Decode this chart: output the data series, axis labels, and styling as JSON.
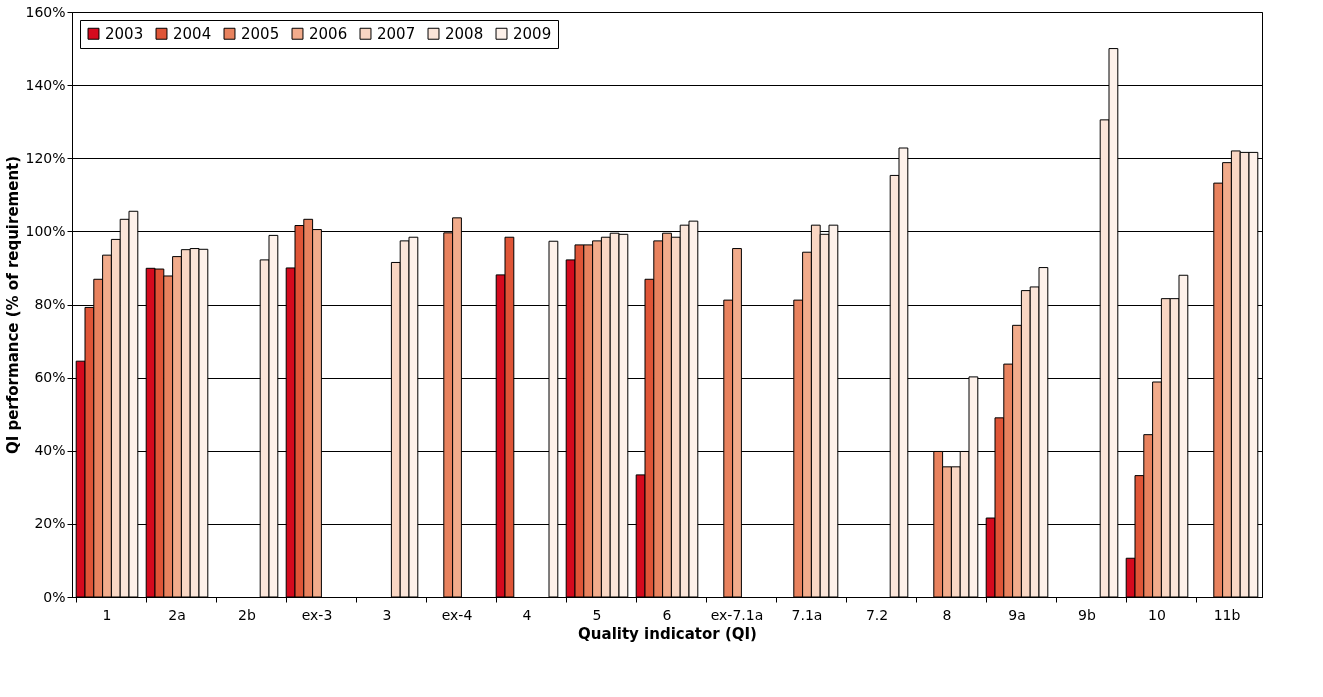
{
  "chart_data": {
    "type": "bar",
    "xlabel": "Quality indicator (QI)",
    "ylabel": "QI performance (% of requirement)",
    "categories": [
      "1",
      "2a",
      "2b",
      "ex-3",
      "3",
      "ex-4",
      "4",
      "5",
      "6",
      "ex-7.1a",
      "7.1a",
      "7.2",
      "8",
      "9a",
      "9b",
      "10",
      "11b"
    ],
    "series": [
      {
        "name": "2003",
        "color": "#d40a1e",
        "values": [
          64.5,
          89.9,
          null,
          90,
          null,
          null,
          88.1,
          92.2,
          33.4,
          null,
          null,
          null,
          null,
          21.6,
          null,
          10.6,
          null
        ]
      },
      {
        "name": "2004",
        "color": "#df5537",
        "values": [
          79.2,
          89.7,
          null,
          101.6,
          null,
          null,
          98.4,
          96.3,
          86.9,
          null,
          null,
          null,
          null,
          49.0,
          null,
          33.2,
          null
        ]
      },
      {
        "name": "2005",
        "color": "#e8825e",
        "values": [
          86.9,
          87.8,
          null,
          103.3,
          null,
          99.6,
          null,
          96.3,
          97.4,
          81.2,
          81.2,
          null,
          39.8,
          63.7,
          null,
          44.4,
          113.2
        ]
      },
      {
        "name": "2006",
        "color": "#f2ac8c",
        "values": [
          93.5,
          93.1,
          null,
          100.5,
          null,
          103.7,
          null,
          97.4,
          99.5,
          95.3,
          94.3,
          null,
          35.6,
          74.3,
          null,
          58.8,
          118.8
        ]
      },
      {
        "name": "2007",
        "color": "#f9d6c3",
        "values": [
          97.8,
          95.0,
          null,
          null,
          91.5,
          null,
          null,
          98.4,
          98.4,
          null,
          101.7,
          null,
          35.6,
          83.8,
          null,
          81.6,
          122
        ]
      },
      {
        "name": "2008",
        "color": "#fbe5d9",
        "values": [
          103.3,
          95.3,
          92.2,
          null,
          97.4,
          null,
          null,
          99.5,
          101.7,
          null,
          99.2,
          115.3,
          39.8,
          84.8,
          130.5,
          81.6,
          121.6
        ]
      },
      {
        "name": "2009",
        "color": "#fdf1ea",
        "values": [
          105.5,
          95.1,
          98.9,
          null,
          98.4,
          null,
          97.3,
          99.2,
          102.8,
          null,
          101.7,
          122.8,
          60.2,
          90.1,
          150,
          88.0,
          121.6
        ]
      }
    ],
    "ylim": [
      0,
      160
    ],
    "yticks": [
      {
        "value": 0,
        "label": "0%"
      },
      {
        "value": 20,
        "label": "20%"
      },
      {
        "value": 40,
        "label": "40%"
      },
      {
        "value": 60,
        "label": "60%"
      },
      {
        "value": 80,
        "label": "80%"
      },
      {
        "value": 100,
        "label": "100%"
      },
      {
        "value": 120,
        "label": "120%"
      },
      {
        "value": 140,
        "label": "140%"
      },
      {
        "value": 160,
        "label": "160%"
      }
    ],
    "grid": "y",
    "legend": "top left"
  }
}
